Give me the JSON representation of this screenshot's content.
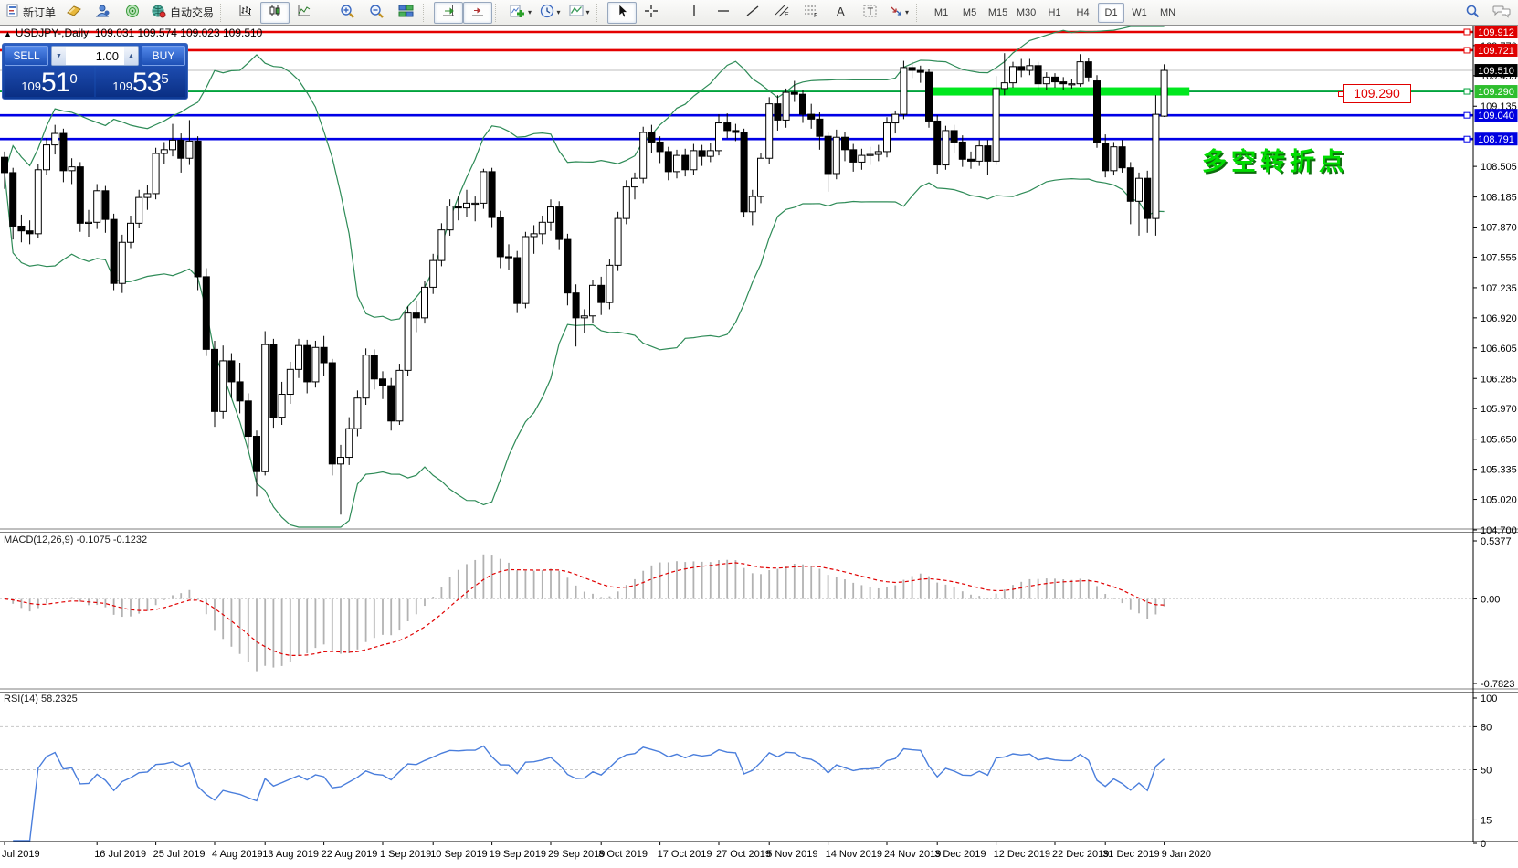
{
  "toolbar": {
    "new_order_label": "新订单",
    "autotrading_label": "自动交易",
    "timeframes": [
      "M1",
      "M5",
      "M15",
      "M30",
      "H1",
      "H4",
      "D1",
      "W1",
      "MN"
    ],
    "active_timeframe": "D1"
  },
  "chart": {
    "symbol_title": "USDJPY-,Daily",
    "ohlc_line": "109.031 109.574 109.023 109.510",
    "annotation": "多空转折点",
    "trade_panel": {
      "sell_label": "SELL",
      "buy_label": "BUY",
      "volume": "1.00",
      "sell_price_small": "109",
      "sell_price_big": "51",
      "sell_price_sup": "0",
      "buy_price_small": "109",
      "buy_price_big": "53",
      "buy_price_sup": "5"
    },
    "price_label_box": "109.290",
    "badges": [
      {
        "price": 109.912,
        "text": "109.912",
        "color": "#df0000"
      },
      {
        "price": 109.721,
        "text": "109.721",
        "color": "#df0000"
      },
      {
        "price": 109.51,
        "text": "109.510",
        "color": "#000000"
      },
      {
        "price": 109.29,
        "text": "109.290",
        "color": "#2ebe2e"
      },
      {
        "price": 109.04,
        "text": "109.040",
        "color": "#0000e0"
      },
      {
        "price": 108.791,
        "text": "108.791",
        "color": "#0000e0"
      }
    ],
    "y_axis_ticks": [
      "109.770",
      "109.455",
      "109.135",
      "108.505",
      "108.185",
      "107.870",
      "107.555",
      "107.235",
      "106.920",
      "106.605",
      "106.285",
      "105.970",
      "105.650",
      "105.335",
      "105.020",
      "104.700"
    ]
  },
  "macd": {
    "label": "MACD(12,26,9) -0.1075 -0.1232",
    "axis": [
      "0.5377",
      "0.00",
      "-0.7823"
    ]
  },
  "rsi": {
    "label": "RSI(14) 58.2325",
    "axis_top": "100",
    "axis_bottom": "0",
    "levels": [
      80,
      50,
      15
    ]
  },
  "chart_data": {
    "type": "candlestick",
    "symbol": "USDJPY",
    "period": "Daily",
    "title": "USDJPY-,Daily 109.031 109.574 109.023 109.510",
    "last_bar": {
      "open": 109.031,
      "high": 109.574,
      "low": 109.023,
      "close": 109.51
    },
    "price_axis_range": [
      104.7,
      109.912
    ],
    "levels": {
      "red_lines": [
        109.912,
        109.721
      ],
      "blue_lines": [
        109.04,
        108.791
      ],
      "green_line": 109.29,
      "current_price": 109.51,
      "green_segment": {
        "price": 109.29,
        "start_index": 110,
        "end_index": 141
      }
    },
    "indicators": [
      {
        "name": "Bollinger Bands",
        "params": [
          20,
          2
        ]
      },
      {
        "name": "MACD",
        "params": [
          12,
          26,
          9
        ],
        "values": [
          -0.1075,
          -0.1232
        ],
        "scale": [
          0.5377,
          -0.7823
        ]
      },
      {
        "name": "RSI",
        "params": [
          14
        ],
        "value": 58.2325,
        "scale": [
          0,
          100
        ],
        "level_lines": [
          80,
          50,
          15
        ]
      }
    ],
    "x_labels": [
      [
        "Jul 2019",
        0
      ],
      [
        "16 Jul 2019",
        11
      ],
      [
        "25 Jul 2019",
        18
      ],
      [
        "4 Aug 2019",
        25
      ],
      [
        "13 Aug 2019",
        31
      ],
      [
        "22 Aug 2019",
        38
      ],
      [
        "1 Sep 2019",
        45
      ],
      [
        "10 Sep 2019",
        51
      ],
      [
        "19 Sep 2019",
        58
      ],
      [
        "29 Sep 2019",
        65
      ],
      [
        "8 Oct 2019",
        71
      ],
      [
        "17 Oct 2019",
        78
      ],
      [
        "27 Oct 2019",
        85
      ],
      [
        "5 Nov 2019",
        91
      ],
      [
        "14 Nov 2019",
        98
      ],
      [
        "24 Nov 2019",
        105
      ],
      [
        "3 Dec 2019",
        111
      ],
      [
        "12 Dec 2019",
        118
      ],
      [
        "22 Dec 2019",
        125
      ],
      [
        "31 Dec 2019",
        131
      ],
      [
        "9 Jan 2020",
        138
      ]
    ],
    "candles": [
      [
        108.6,
        108.66,
        108.27,
        108.44
      ],
      [
        108.44,
        108.49,
        107.74,
        107.88
      ],
      [
        107.88,
        108.0,
        107.71,
        107.83
      ],
      [
        107.83,
        107.94,
        107.69,
        107.8
      ],
      [
        107.8,
        108.53,
        107.76,
        108.47
      ],
      [
        108.47,
        108.8,
        108.42,
        108.73
      ],
      [
        108.73,
        108.94,
        108.63,
        108.85
      ],
      [
        108.85,
        108.9,
        108.34,
        108.46
      ],
      [
        108.46,
        108.59,
        108.32,
        108.5
      ],
      [
        108.5,
        108.55,
        107.82,
        107.91
      ],
      [
        107.91,
        108.05,
        107.77,
        107.92
      ],
      [
        107.92,
        108.32,
        107.85,
        108.25
      ],
      [
        108.25,
        108.3,
        107.81,
        107.95
      ],
      [
        107.95,
        108.01,
        107.21,
        107.28
      ],
      [
        107.28,
        107.79,
        107.18,
        107.71
      ],
      [
        107.71,
        107.99,
        107.65,
        107.91
      ],
      [
        107.91,
        108.26,
        107.86,
        108.18
      ],
      [
        108.18,
        108.31,
        108.05,
        108.22
      ],
      [
        108.22,
        108.7,
        108.16,
        108.64
      ],
      [
        108.64,
        108.76,
        108.53,
        108.68
      ],
      [
        108.68,
        108.95,
        108.61,
        108.78
      ],
      [
        108.78,
        108.85,
        108.44,
        108.59
      ],
      [
        108.59,
        108.99,
        108.52,
        108.77
      ],
      [
        108.77,
        108.82,
        107.21,
        107.35
      ],
      [
        107.35,
        107.44,
        106.52,
        106.59
      ],
      [
        106.59,
        106.68,
        105.78,
        105.94
      ],
      [
        105.94,
        106.63,
        105.86,
        106.47
      ],
      [
        106.47,
        106.55,
        106.08,
        106.25
      ],
      [
        106.25,
        106.45,
        105.92,
        106.05
      ],
      [
        106.05,
        106.13,
        105.52,
        105.68
      ],
      [
        105.68,
        105.74,
        105.05,
        105.31
      ],
      [
        105.31,
        106.78,
        105.27,
        106.64
      ],
      [
        106.64,
        106.7,
        105.77,
        105.88
      ],
      [
        105.88,
        106.25,
        105.8,
        106.12
      ],
      [
        106.12,
        106.46,
        106.02,
        106.38
      ],
      [
        106.38,
        106.7,
        106.29,
        106.63
      ],
      [
        106.63,
        106.69,
        106.13,
        106.25
      ],
      [
        106.25,
        106.68,
        106.19,
        106.61
      ],
      [
        106.61,
        106.73,
        106.31,
        106.45
      ],
      [
        106.45,
        106.49,
        105.27,
        105.39
      ],
      [
        105.39,
        105.59,
        104.86,
        105.46
      ],
      [
        105.46,
        105.88,
        105.38,
        105.76
      ],
      [
        105.76,
        106.16,
        105.68,
        106.08
      ],
      [
        106.08,
        106.6,
        106.01,
        106.53
      ],
      [
        106.53,
        106.59,
        106.17,
        106.28
      ],
      [
        106.28,
        106.36,
        106.07,
        106.21
      ],
      [
        106.21,
        106.29,
        105.74,
        105.84
      ],
      [
        105.84,
        106.44,
        105.8,
        106.37
      ],
      [
        106.37,
        107.04,
        106.31,
        106.97
      ],
      [
        106.97,
        107.1,
        106.77,
        106.92
      ],
      [
        106.92,
        107.31,
        106.86,
        107.24
      ],
      [
        107.24,
        107.59,
        107.17,
        107.52
      ],
      [
        107.52,
        107.91,
        107.46,
        107.84
      ],
      [
        107.84,
        108.16,
        107.78,
        108.09
      ],
      [
        108.09,
        108.2,
        107.94,
        108.07
      ],
      [
        108.07,
        108.26,
        107.98,
        108.12
      ],
      [
        108.12,
        108.19,
        107.93,
        108.12
      ],
      [
        108.12,
        108.48,
        108.06,
        108.45
      ],
      [
        108.45,
        108.49,
        107.87,
        107.97
      ],
      [
        107.97,
        108.04,
        107.44,
        107.56
      ],
      [
        107.56,
        107.69,
        107.42,
        107.55
      ],
      [
        107.55,
        107.62,
        106.97,
        107.07
      ],
      [
        107.07,
        107.82,
        107.02,
        107.77
      ],
      [
        107.77,
        107.89,
        107.59,
        107.8
      ],
      [
        107.8,
        107.99,
        107.69,
        107.92
      ],
      [
        107.92,
        108.16,
        107.83,
        108.08
      ],
      [
        108.08,
        108.14,
        107.63,
        107.74
      ],
      [
        107.74,
        107.8,
        107.05,
        107.18
      ],
      [
        107.18,
        107.27,
        106.62,
        106.92
      ],
      [
        106.92,
        107.01,
        106.76,
        106.94
      ],
      [
        106.94,
        107.32,
        106.87,
        107.26
      ],
      [
        107.26,
        107.35,
        106.95,
        107.08
      ],
      [
        107.08,
        107.53,
        107.01,
        107.47
      ],
      [
        107.47,
        108.03,
        107.41,
        107.96
      ],
      [
        107.96,
        108.36,
        107.9,
        108.29
      ],
      [
        108.29,
        108.44,
        108.16,
        108.38
      ],
      [
        108.38,
        108.92,
        108.33,
        108.86
      ],
      [
        108.86,
        108.94,
        108.64,
        108.76
      ],
      [
        108.76,
        108.82,
        108.54,
        108.66
      ],
      [
        108.66,
        108.71,
        108.36,
        108.45
      ],
      [
        108.45,
        108.68,
        108.38,
        108.62
      ],
      [
        108.62,
        108.69,
        108.4,
        108.47
      ],
      [
        108.47,
        108.74,
        108.42,
        108.67
      ],
      [
        108.67,
        108.73,
        108.51,
        108.61
      ],
      [
        108.61,
        108.75,
        108.55,
        108.67
      ],
      [
        108.67,
        109.05,
        108.62,
        108.96
      ],
      [
        108.96,
        109.06,
        108.8,
        108.88
      ],
      [
        108.88,
        108.95,
        108.77,
        108.86
      ],
      [
        108.86,
        108.9,
        107.97,
        108.03
      ],
      [
        108.03,
        108.26,
        107.89,
        108.19
      ],
      [
        108.19,
        108.65,
        108.12,
        108.59
      ],
      [
        108.59,
        109.23,
        108.53,
        109.16
      ],
      [
        109.16,
        109.25,
        108.88,
        108.99
      ],
      [
        108.99,
        109.32,
        108.91,
        109.28
      ],
      [
        109.28,
        109.4,
        109.18,
        109.26
      ],
      [
        109.26,
        109.31,
        108.96,
        109.05
      ],
      [
        109.05,
        109.16,
        108.9,
        109.0
      ],
      [
        109.0,
        109.07,
        108.68,
        108.82
      ],
      [
        108.82,
        108.87,
        108.24,
        108.43
      ],
      [
        108.43,
        108.89,
        108.37,
        108.81
      ],
      [
        108.81,
        108.86,
        108.56,
        108.68
      ],
      [
        108.68,
        108.74,
        108.45,
        108.55
      ],
      [
        108.55,
        108.69,
        108.47,
        108.62
      ],
      [
        108.62,
        108.71,
        108.52,
        108.63
      ],
      [
        108.63,
        108.73,
        108.56,
        108.66
      ],
      [
        108.66,
        109.02,
        108.6,
        108.96
      ],
      [
        108.96,
        109.09,
        108.85,
        109.05
      ],
      [
        109.05,
        109.61,
        109.0,
        109.54
      ],
      [
        109.54,
        109.6,
        109.43,
        109.51
      ],
      [
        109.51,
        109.56,
        109.38,
        109.49
      ],
      [
        109.49,
        109.53,
        108.91,
        108.98
      ],
      [
        108.98,
        109.04,
        108.43,
        108.52
      ],
      [
        108.52,
        108.93,
        108.47,
        108.88
      ],
      [
        108.88,
        108.94,
        108.65,
        108.76
      ],
      [
        108.76,
        108.83,
        108.5,
        108.58
      ],
      [
        108.58,
        108.66,
        108.48,
        108.56
      ],
      [
        108.56,
        108.78,
        108.51,
        108.72
      ],
      [
        108.72,
        108.78,
        108.42,
        108.56
      ],
      [
        108.56,
        109.45,
        108.52,
        109.32
      ],
      [
        109.32,
        109.69,
        109.25,
        109.38
      ],
      [
        109.38,
        109.6,
        109.33,
        109.55
      ],
      [
        109.55,
        109.63,
        109.44,
        109.51
      ],
      [
        109.51,
        109.63,
        109.46,
        109.56
      ],
      [
        109.56,
        109.6,
        109.31,
        109.37
      ],
      [
        109.37,
        109.49,
        109.3,
        109.44
      ],
      [
        109.44,
        109.48,
        109.33,
        109.39
      ],
      [
        109.39,
        109.44,
        109.31,
        109.37
      ],
      [
        109.37,
        109.42,
        109.32,
        109.37
      ],
      [
        109.37,
        109.68,
        109.34,
        109.6
      ],
      [
        109.6,
        109.64,
        109.39,
        109.44
      ],
      [
        109.4,
        109.46,
        108.7,
        108.75
      ],
      [
        108.75,
        108.84,
        108.39,
        108.46
      ],
      [
        108.46,
        108.76,
        108.41,
        108.71
      ],
      [
        108.71,
        108.78,
        108.44,
        108.49
      ],
      [
        108.49,
        108.55,
        107.9,
        108.14
      ],
      [
        108.14,
        108.44,
        107.78,
        108.38
      ],
      [
        108.38,
        108.46,
        107.81,
        107.96
      ],
      [
        107.96,
        109.25,
        107.78,
        109.05
      ],
      [
        109.031,
        109.574,
        109.023,
        109.51
      ]
    ]
  }
}
